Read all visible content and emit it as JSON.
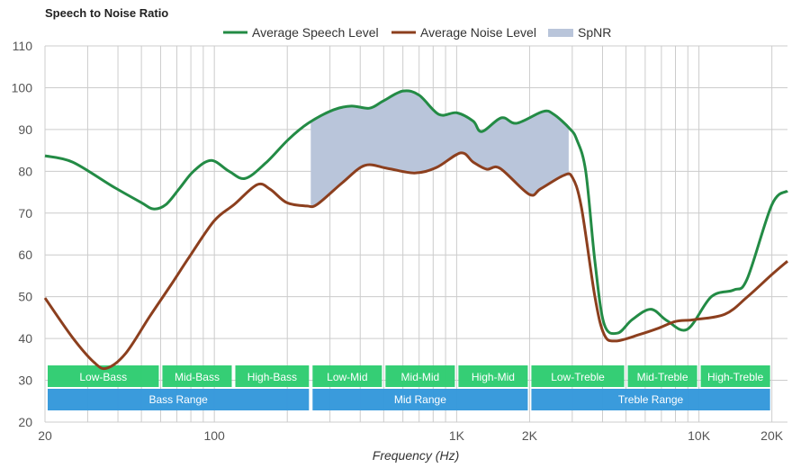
{
  "chart_data": {
    "type": "line",
    "title": "Speech to Noise Ratio",
    "xlabel": "Frequency (Hz)",
    "ylabel": "",
    "xscale": "log",
    "xlim": [
      20,
      23200
    ],
    "ylim": [
      20,
      110
    ],
    "grid": true,
    "legend_position": "top-center",
    "x_ticks": [
      {
        "value": 20,
        "label": "20"
      },
      {
        "value": 100,
        "label": "100"
      },
      {
        "value": 1000,
        "label": "1K"
      },
      {
        "value": 2000,
        "label": "2K"
      },
      {
        "value": 10000,
        "label": "10K"
      },
      {
        "value": 20000,
        "label": "20K"
      }
    ],
    "x_minor_grid": [
      30,
      40,
      50,
      60,
      70,
      80,
      90,
      200,
      300,
      400,
      500,
      600,
      700,
      800,
      900,
      3000,
      4000,
      5000,
      6000,
      7000,
      8000,
      9000
    ],
    "y_ticks": [
      20,
      30,
      40,
      50,
      60,
      70,
      80,
      90,
      100,
      110
    ],
    "legend": [
      {
        "name": "Average Speech Level",
        "kind": "line",
        "color": "#238b45"
      },
      {
        "name": "Average Noise Level",
        "kind": "line",
        "color": "#8c3f1e"
      },
      {
        "name": "SpNR",
        "kind": "area",
        "color": "#b9c5da"
      }
    ],
    "series": [
      {
        "name": "Average Speech Level",
        "color": "#238b45",
        "x": [
          20,
          26,
          38,
          50,
          56,
          63,
          72,
          82,
          97,
          115,
          134,
          163,
          202,
          244,
          310,
          368,
          437,
          497,
          600,
          700,
          845,
          1000,
          1170,
          1270,
          1530,
          1770,
          2270,
          2520,
          2930,
          3130,
          3410,
          3720,
          4060,
          4620,
          5300,
          6330,
          7370,
          8950,
          11250,
          13900,
          15800,
          20000,
          23200
        ],
        "y": [
          83.7,
          82.2,
          76.4,
          72.5,
          71.0,
          72.0,
          76.0,
          80.0,
          82.6,
          80.0,
          78.3,
          82.0,
          87.6,
          91.5,
          94.7,
          95.6,
          95.1,
          96.8,
          99.2,
          98.2,
          93.6,
          94.0,
          92.0,
          89.5,
          92.8,
          91.5,
          94.3,
          93.6,
          90.2,
          87.6,
          80.0,
          58.5,
          43.5,
          41.3,
          44.5,
          47.0,
          44.3,
          42.2,
          50.0,
          51.6,
          54.2,
          72.0,
          75.3
        ]
      },
      {
        "name": "Average Noise Level",
        "color": "#8c3f1e",
        "x": [
          20,
          26,
          32,
          36,
          43,
          54,
          66,
          79,
          100,
          121,
          150,
          170,
          199,
          241,
          266,
          338,
          418,
          518,
          670,
          825,
          1040,
          1170,
          1330,
          1510,
          1990,
          2220,
          2760,
          3000,
          3270,
          3720,
          4060,
          4530,
          5720,
          6760,
          8030,
          9520,
          12800,
          15800,
          20000,
          23200
        ],
        "y": [
          49.7,
          40.2,
          34.2,
          32.9,
          36.4,
          45.2,
          52.7,
          59.6,
          68.2,
          72.1,
          76.8,
          75.7,
          72.5,
          71.7,
          72.1,
          77.3,
          81.4,
          80.7,
          79.6,
          80.9,
          84.4,
          82.2,
          80.5,
          80.7,
          74.5,
          75.8,
          79.0,
          78.6,
          71.5,
          50.0,
          41.0,
          39.4,
          41.0,
          42.4,
          44.1,
          44.5,
          45.8,
          49.9,
          55.3,
          58.5
        ]
      }
    ],
    "spnr_area": {
      "name": "SpNR",
      "x_start": 250,
      "x_end": 2900,
      "color": "#b9c5da"
    },
    "bands": {
      "sub": [
        {
          "label": "Low-Bass",
          "from": 20,
          "to": 60
        },
        {
          "label": "Mid-Bass",
          "from": 60,
          "to": 120
        },
        {
          "label": "High-Bass",
          "from": 120,
          "to": 250
        },
        {
          "label": "Low-Mid",
          "from": 250,
          "to": 500
        },
        {
          "label": "Mid-Mid",
          "from": 500,
          "to": 1000
        },
        {
          "label": "High-Mid",
          "from": 1000,
          "to": 2000
        },
        {
          "label": "Low-Treble",
          "from": 2000,
          "to": 5000
        },
        {
          "label": "Mid-Treble",
          "from": 5000,
          "to": 10000
        },
        {
          "label": "High-Treble",
          "from": 10000,
          "to": 20000
        }
      ],
      "ranges": [
        {
          "label": "Bass Range",
          "from": 20,
          "to": 250
        },
        {
          "label": "Mid Range",
          "from": 250,
          "to": 2000
        },
        {
          "label": "Treble Range",
          "from": 2000,
          "to": 20000
        }
      ],
      "sub_color": "#2ecc71",
      "range_color": "#3498db"
    }
  }
}
